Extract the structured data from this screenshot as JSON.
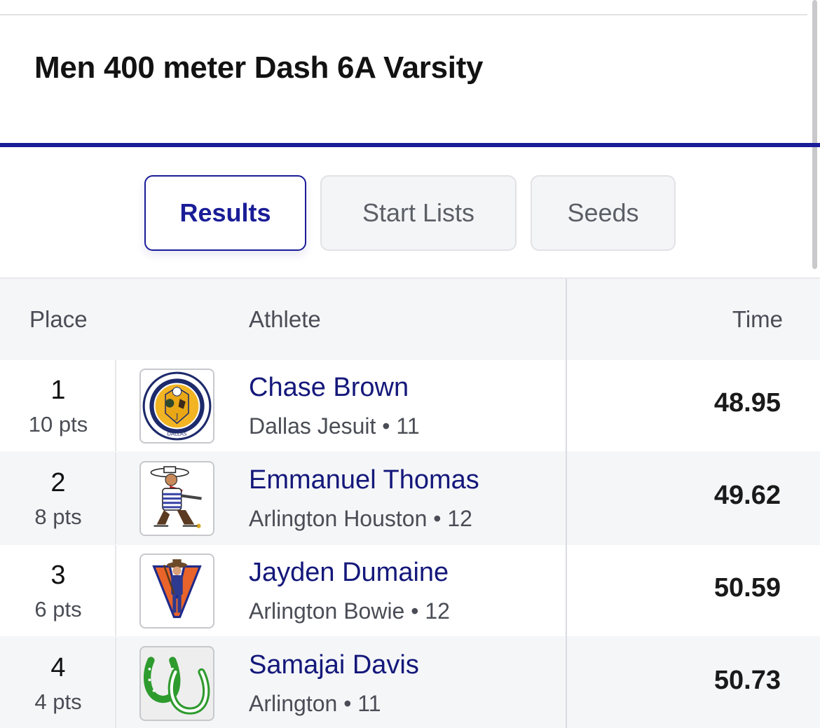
{
  "event": {
    "title": "Men 400 meter Dash 6A Varsity"
  },
  "tabs": [
    {
      "label": "Results",
      "active": true
    },
    {
      "label": "Start Lists",
      "active": false
    },
    {
      "label": "Seeds",
      "active": false
    }
  ],
  "table": {
    "columns": {
      "place": "Place",
      "athlete": "Athlete",
      "time": "Time"
    },
    "rows": [
      {
        "place": "1",
        "points": "10 pts",
        "name": "Chase Brown",
        "school": "Dallas Jesuit • 11",
        "time": "48.95",
        "logo": "dallas-jesuit-seal-icon"
      },
      {
        "place": "2",
        "points": "8 pts",
        "name": "Emmanuel Thomas",
        "school": "Arlington Houston • 12",
        "time": "49.62",
        "logo": "cowboy-mascot-icon"
      },
      {
        "place": "3",
        "points": "6 pts",
        "name": "Jayden Dumaine",
        "school": "Arlington Bowie • 12",
        "time": "50.59",
        "logo": "v-frontiersman-icon"
      },
      {
        "place": "4",
        "points": "4 pts",
        "name": "Samajai Davis",
        "school": "Arlington • 11",
        "time": "50.73",
        "logo": "horseshoes-icon"
      }
    ]
  },
  "colors": {
    "accent": "#1a1d97",
    "name": "#14187a"
  }
}
